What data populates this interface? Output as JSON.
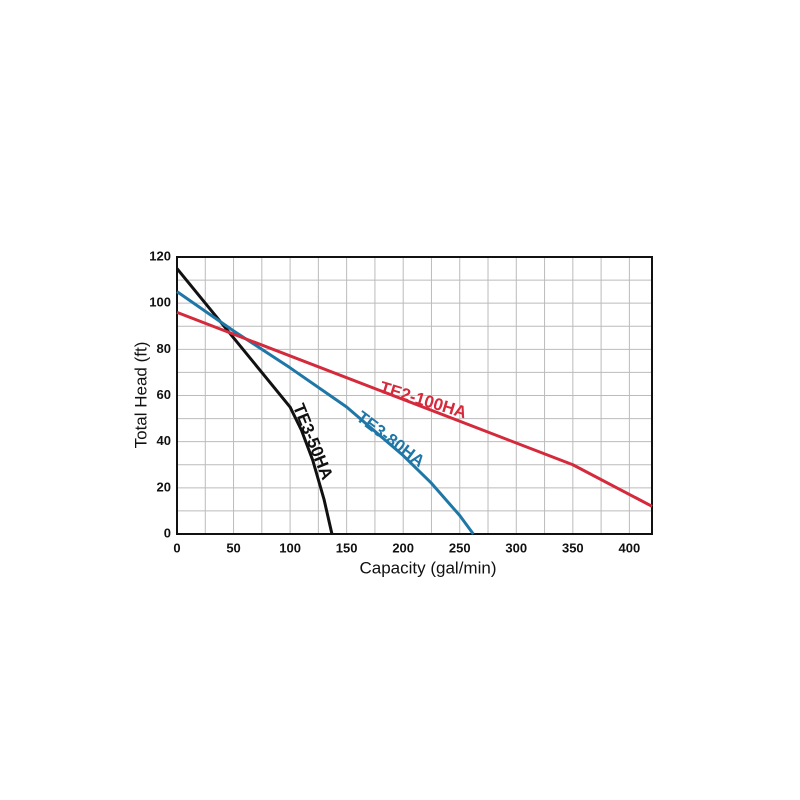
{
  "chart_data": {
    "type": "line",
    "xlabel": "Capacity  (gal/min)",
    "ylabel": "Total  Head  (ft)",
    "xlim": [
      0,
      420
    ],
    "ylim": [
      0,
      120
    ],
    "xticks": [
      0,
      50,
      100,
      150,
      200,
      250,
      300,
      350,
      400
    ],
    "yticks": [
      0,
      20,
      40,
      60,
      80,
      100,
      120
    ],
    "xminor": [
      25,
      75,
      125,
      175,
      225,
      275,
      325,
      375
    ],
    "yminor": [
      10,
      30,
      50,
      70,
      90,
      110
    ],
    "grid": true,
    "series": [
      {
        "name": "TE3-50HA",
        "color": "#111111",
        "x": [
          0,
          25,
          50,
          75,
          100,
          110,
          120,
          130,
          137
        ],
        "values": [
          115,
          100,
          85,
          70,
          55,
          45,
          32,
          15,
          0
        ]
      },
      {
        "name": "TE3-80HA",
        "color": "#1f77a8",
        "x": [
          0,
          50,
          100,
          150,
          200,
          225,
          250,
          262
        ],
        "values": [
          105,
          88,
          72,
          55,
          34,
          22,
          8,
          0
        ]
      },
      {
        "name": "TE2-100HA",
        "color": "#d42a3c",
        "x": [
          0,
          350,
          420
        ],
        "values": [
          96,
          30,
          12
        ]
      }
    ]
  }
}
